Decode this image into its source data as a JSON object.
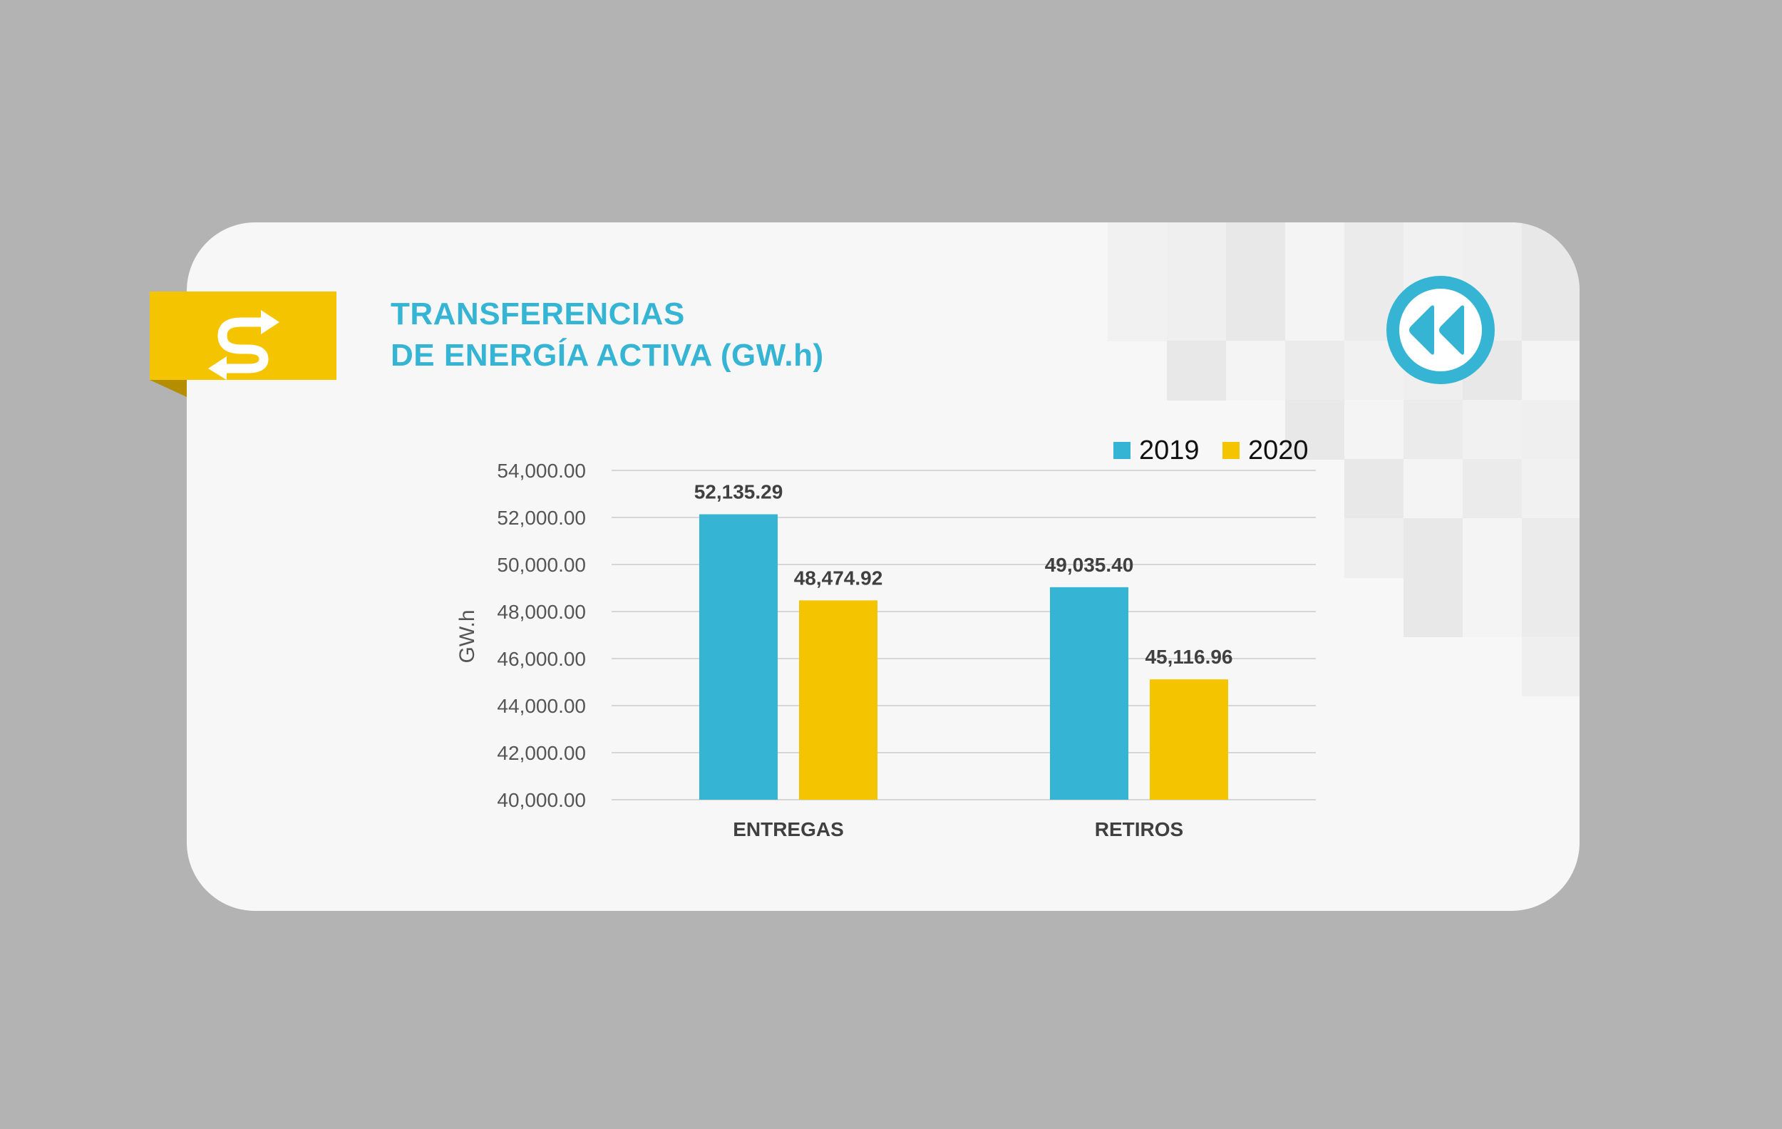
{
  "header": {
    "title_line1": "TRANSFERENCIAS",
    "title_line2": "DE ENERGÍA ACTIVA (GW.h)",
    "transfer_icon": "swap-arrows-icon",
    "back_icon": "rewind-icon"
  },
  "colors": {
    "accent_blue": "#35b4d4",
    "accent_yellow": "#f5c400",
    "grid": "#d6d6d6",
    "axis_text": "#555555"
  },
  "chart_data": {
    "type": "bar",
    "categories": [
      "ENTREGAS",
      "RETIROS"
    ],
    "series": [
      {
        "name": "2019",
        "values": [
          52135.29,
          49035.4
        ],
        "labels": [
          "52,135.29",
          "49,035.40"
        ],
        "color": "#35b4d4"
      },
      {
        "name": "2020",
        "values": [
          48474.92,
          45116.96
        ],
        "labels": [
          "48,474.92",
          "45,116.96"
        ],
        "color": "#f5c400"
      }
    ],
    "ylabel": "GW.h",
    "ylim": [
      40000,
      54000
    ],
    "yticks": [
      40000,
      42000,
      44000,
      46000,
      48000,
      50000,
      52000,
      54000
    ],
    "ytick_labels": [
      "40,000.00",
      "42,000.00",
      "44,000.00",
      "46,000.00",
      "48,000.00",
      "50,000.00",
      "52,000.00",
      "54,000.00"
    ],
    "grid": true,
    "legend": "top-right"
  }
}
